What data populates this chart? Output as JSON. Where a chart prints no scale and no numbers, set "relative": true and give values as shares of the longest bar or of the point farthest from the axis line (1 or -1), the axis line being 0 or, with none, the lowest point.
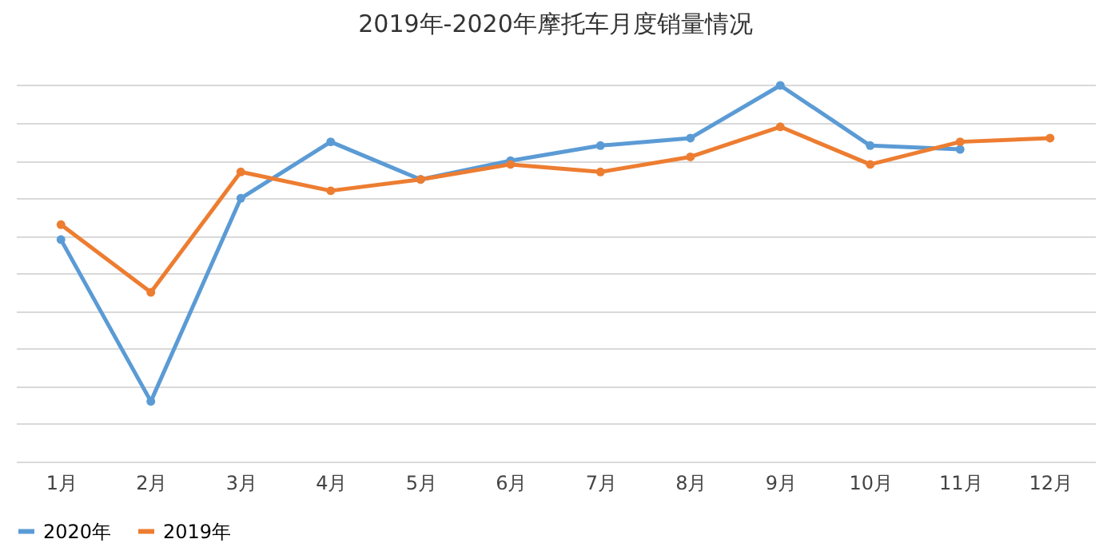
{
  "chart_data": {
    "type": "line",
    "title": "2019年-2020年摩托车月度销量情况",
    "relative": true,
    "categories": [
      "1月",
      "2月",
      "3月",
      "4月",
      "5月",
      "6月",
      "7月",
      "8月",
      "9月",
      "10月",
      "11月",
      "12月"
    ],
    "series": [
      {
        "name": "2020年",
        "color": "#5b9bd5",
        "values": [
          0.59,
          0.16,
          0.7,
          0.85,
          0.75,
          0.8,
          0.84,
          0.86,
          1,
          0.84,
          0.83,
          null
        ]
      },
      {
        "name": "2019年",
        "color": "#ed7d31",
        "values": [
          0.63,
          0.45,
          0.77,
          0.72,
          0.75,
          0.79,
          0.77,
          0.81,
          0.89,
          0.79,
          0.85,
          0.86
        ]
      }
    ],
    "grid": "y",
    "legend": "bottom",
    "marker": "circle",
    "line_style": "solid"
  }
}
